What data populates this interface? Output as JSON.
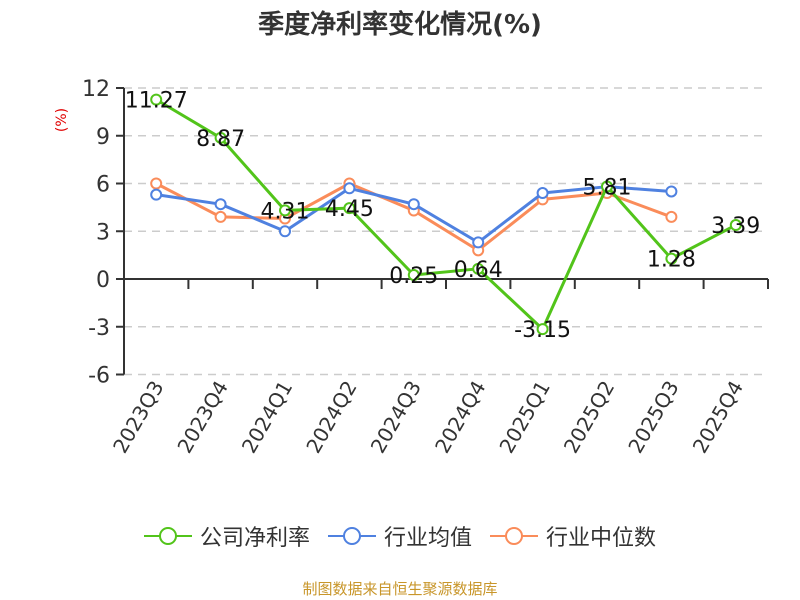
{
  "title": "季度净利率变化情况(%)",
  "y_unit": "(%)",
  "source": "制图数据来自恒生聚源数据库",
  "colors": {
    "company": "#52c41a",
    "avg": "#4f81e0",
    "median": "#fa8c5a",
    "grid": "#cccccc",
    "axis": "#333333",
    "unit": "#e00000",
    "source": "#c8962a"
  },
  "legend": [
    {
      "label": "公司净利率",
      "color": "#52c41a"
    },
    {
      "label": "行业均值",
      "color": "#4f81e0"
    },
    {
      "label": "行业中位数",
      "color": "#fa8c5a"
    }
  ],
  "chart_data": {
    "type": "line",
    "title": "季度净利率变化情况(%)",
    "xlabel": "",
    "ylabel": "(%)",
    "categories": [
      "2023Q3",
      "2023Q4",
      "2024Q1",
      "2024Q2",
      "2024Q3",
      "2024Q4",
      "2025Q1",
      "2025Q2",
      "2025Q3",
      "2025Q4"
    ],
    "ylim": [
      -6,
      12
    ],
    "yticks": [
      12,
      9,
      6,
      3,
      0,
      -3,
      -6
    ],
    "grid": true,
    "legend_position": "bottom",
    "series": [
      {
        "name": "公司净利率",
        "values": [
          11.27,
          8.87,
          4.31,
          4.45,
          0.25,
          0.64,
          -3.15,
          5.81,
          1.28,
          3.39
        ],
        "labels": true
      },
      {
        "name": "行业均值",
        "values": [
          5.3,
          4.7,
          3.0,
          5.7,
          4.7,
          2.3,
          5.4,
          5.8,
          5.5,
          null
        ]
      },
      {
        "name": "行业中位数",
        "values": [
          6.0,
          3.9,
          3.8,
          6.0,
          4.3,
          1.8,
          5.0,
          5.4,
          3.9,
          null
        ]
      }
    ]
  }
}
